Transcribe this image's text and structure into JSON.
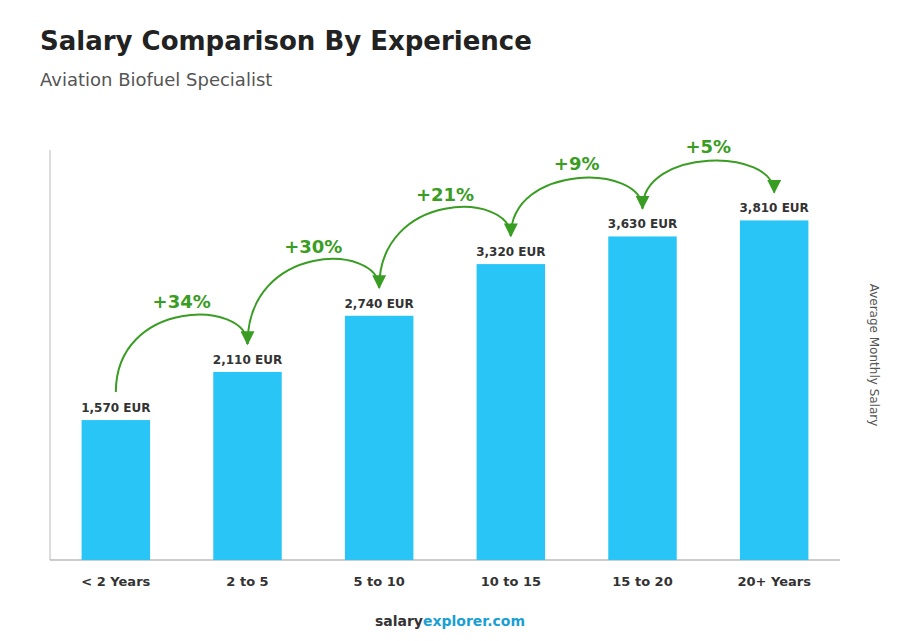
{
  "chart_data": {
    "type": "bar",
    "title": "Salary Comparison By Experience",
    "subtitle": "Aviation Biofuel Specialist",
    "y_label": "Average Monthly Salary",
    "categories": [
      "< 2 Years",
      "2 to 5",
      "5 to 10",
      "10 to 15",
      "15 to 20",
      "20+ Years"
    ],
    "values": [
      1570,
      2110,
      2740,
      3320,
      3630,
      3810
    ],
    "value_labels": [
      "1,570 EUR",
      "2,110 EUR",
      "2,740 EUR",
      "3,320 EUR",
      "3,630 EUR",
      "3,810 EUR"
    ],
    "data_labels": true,
    "annotations": [
      "+34%",
      "+30%",
      "+21%",
      "+9%",
      "+5%"
    ],
    "footer": [
      "salary",
      "explorer.com"
    ],
    "color": "#29c5f6",
    "ylim": [
      0,
      4600
    ],
    "tick_labels": "x",
    "grid": false
  }
}
